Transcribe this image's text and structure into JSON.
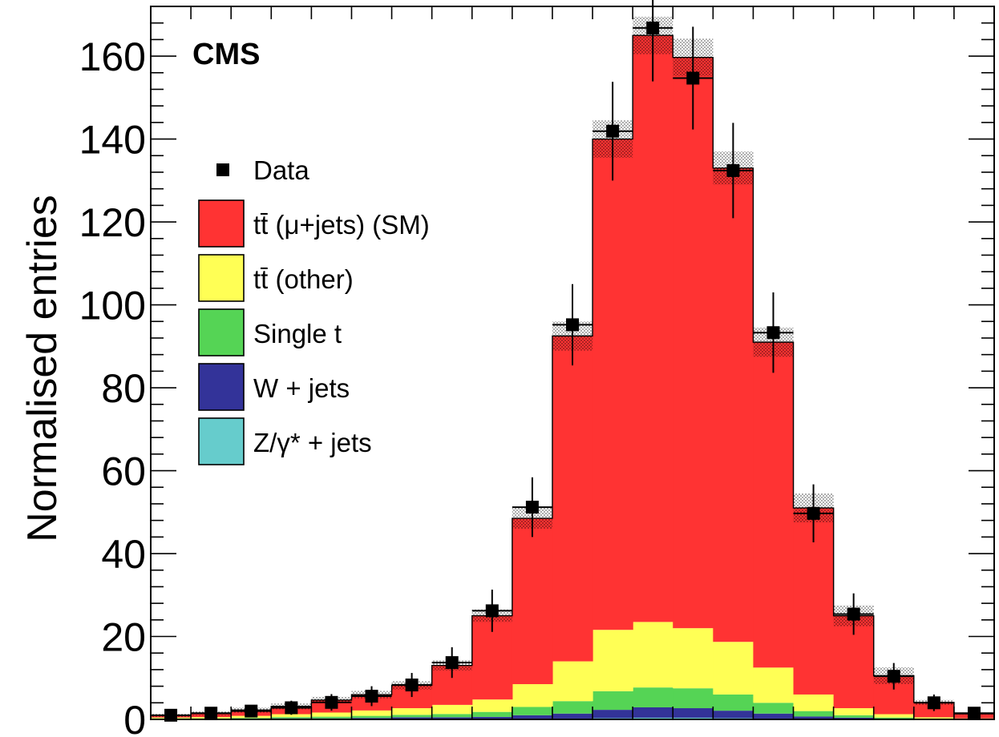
{
  "chart_data": {
    "type": "bar",
    "stacked": true,
    "ylabel": "Normalised entries",
    "ylim": [
      0,
      172
    ],
    "yticks_major": [
      0,
      20,
      40,
      60,
      80,
      100,
      120,
      140,
      160
    ],
    "y_tick_labels": [
      "0",
      "20",
      "40",
      "60",
      "80",
      "100",
      "120",
      "140",
      "160"
    ],
    "experiment_label": "CMS",
    "legend_placement": "top-left",
    "bins": 21,
    "series": [
      {
        "name": "Z/γ* + jets",
        "color": "#66cccc",
        "values": [
          0.05,
          0.05,
          0.05,
          0.05,
          0.05,
          0.05,
          0.1,
          0.1,
          0.1,
          0.2,
          0.2,
          0.3,
          0.4,
          0.4,
          0.3,
          0.2,
          0.1,
          0.1,
          0.05,
          0.05,
          0.05
        ]
      },
      {
        "name": "W + jets",
        "color": "#333399",
        "values": [
          0.1,
          0.1,
          0.1,
          0.2,
          0.2,
          0.3,
          0.4,
          0.4,
          0.5,
          0.8,
          1.2,
          2.0,
          2.5,
          2.3,
          1.8,
          1.2,
          0.6,
          0.3,
          0.1,
          0.05,
          0.05
        ]
      },
      {
        "name": "Single t",
        "color": "#55d455",
        "values": [
          0.1,
          0.1,
          0.2,
          0.3,
          0.4,
          0.5,
          0.6,
          0.8,
          1.2,
          2.0,
          3.0,
          4.5,
          4.8,
          4.8,
          3.9,
          2.6,
          1.3,
          0.6,
          0.3,
          0.1,
          0.05
        ]
      },
      {
        "name": "tt̄ (other)",
        "color": "#ffff55",
        "values": [
          0.2,
          0.3,
          0.5,
          0.7,
          1.0,
          1.3,
          1.6,
          2.2,
          3.0,
          5.5,
          9.6,
          14.8,
          15.8,
          14.5,
          12.7,
          8.5,
          4.0,
          1.7,
          0.8,
          0.3,
          0.1
        ]
      },
      {
        "name": "tt̄ (μ+jets) (SM)",
        "color": "#ff3333",
        "values": [
          0.5,
          0.9,
          1.4,
          1.9,
          3.0,
          3.8,
          5.5,
          9.5,
          20.2,
          40.0,
          78.5,
          118.4,
          141.5,
          137.7,
          114.3,
          78.5,
          45.0,
          22.3,
          9.3,
          3.6,
          1.1
        ]
      }
    ],
    "total_mc": [
      0.95,
      1.45,
      2.25,
      3.15,
      4.65,
      5.95,
      8.2,
      13.0,
      25.0,
      48.5,
      92.5,
      140.0,
      165.0,
      159.7,
      133.0,
      91.0,
      51.0,
      25.0,
      10.55,
      4.1,
      1.35
    ],
    "mc_uncertainty": [
      0.4,
      0.5,
      0.6,
      0.7,
      0.8,
      0.9,
      1.0,
      1.2,
      1.5,
      2.5,
      3.5,
      4.5,
      4.5,
      4.5,
      4.0,
      3.5,
      3.5,
      2.5,
      2.0,
      0.6,
      0.3
    ],
    "data": {
      "name": "Data",
      "values": [
        1.0,
        1.5,
        2.0,
        2.8,
        4.1,
        5.6,
        8.3,
        13.7,
        26.2,
        51.2,
        95.2,
        141.9,
        166.8,
        154.7,
        132.4,
        93.3,
        49.7,
        25.4,
        10.4,
        4.0,
        1.5
      ],
      "errors": [
        1.0,
        1.2,
        1.4,
        1.7,
        2.0,
        2.4,
        2.9,
        3.7,
        5.1,
        7.2,
        9.8,
        11.9,
        12.9,
        12.4,
        11.5,
        9.7,
        7.0,
        5.0,
        3.2,
        2.0,
        1.2
      ]
    },
    "legend": [
      "Data",
      "tt̄ (μ+jets) (SM)",
      "tt̄ (other)",
      "Single t",
      "W + jets",
      "Z/γ* + jets"
    ]
  },
  "legend_items": [
    {
      "label": "Data",
      "marker": "square",
      "color": "#000000"
    },
    {
      "label": "tt̄ (μ+jets) (SM)",
      "marker": "box",
      "color": "#ff3333"
    },
    {
      "label": "tt̄ (other)",
      "marker": "box",
      "color": "#ffff55"
    },
    {
      "label": "Single t",
      "marker": "box",
      "color": "#55d455"
    },
    {
      "label": "W + jets",
      "marker": "box",
      "color": "#333399"
    },
    {
      "label": "Z/γ* + jets",
      "marker": "box",
      "color": "#66cccc"
    }
  ]
}
